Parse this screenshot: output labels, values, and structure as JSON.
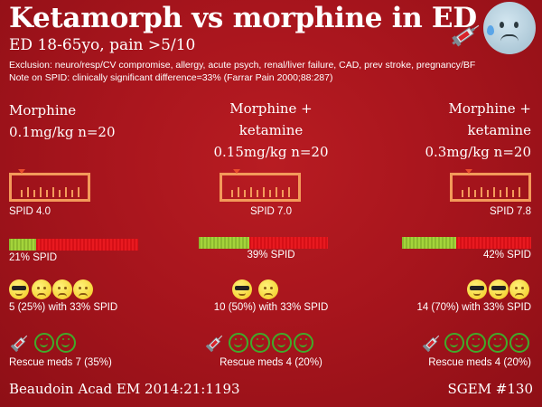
{
  "title": "Ketamorph vs morphine in ED",
  "subtitle": "ED 18-65yo, pain >5/10",
  "exclusion": "Exclusion: neuro/resp/CV compromise, allergy, acute psych, renal/liver failure, CAD, prev stroke, pregnancy/BF",
  "note": "Note on SPID: clinically significant difference=33% (Farrar Pain 2000;88:287)",
  "arms": [
    {
      "title_line1": "Morphine",
      "title_line2": "0.1mg/kg n=20",
      "spid_label": "SPID 4.0",
      "spid_value": 4.0,
      "spid_pct_label": "21% SPID",
      "spid_pct": 21,
      "responders_label": "5 (25%) with 33% SPID",
      "rescue_label": "Rescue meds 7 (35%)"
    },
    {
      "title_line1": "Morphine +",
      "title_line2": "ketamine",
      "title_line3": "0.15mg/kg n=20",
      "spid_label": "SPID 7.0",
      "spid_value": 7.0,
      "spid_pct_label": "39% SPID",
      "spid_pct": 39,
      "responders_label": "10 (50%) with 33% SPID",
      "rescue_label": "Rescue meds 4 (20%)"
    },
    {
      "title_line1": "Morphine +",
      "title_line2": "ketamine",
      "title_line3": "0.3mg/kg n=20",
      "spid_label": "SPID 7.8",
      "spid_value": 7.8,
      "spid_pct_label": "42% SPID",
      "spid_pct": 42,
      "responders_label": "14 (70%) with 33% SPID",
      "rescue_label": "Rescue meds 4 (20%)"
    }
  ],
  "citation": "Beaudoin Acad EM 2014:21:1193",
  "sgem": "SGEM #130",
  "colors": {
    "background": "#a8151d",
    "ruler": "#f39a5a",
    "bar_green": "#a4d43b",
    "bar_red": "#e81a20",
    "smiley_green": "#40ab2a",
    "emoji_yellow": "#f2c81d"
  },
  "icons": [
    "syringe-icon",
    "cold-sweat-face-icon",
    "sunglasses-emoji-icon",
    "sad-emoji-icon",
    "green-smiley-icon"
  ]
}
